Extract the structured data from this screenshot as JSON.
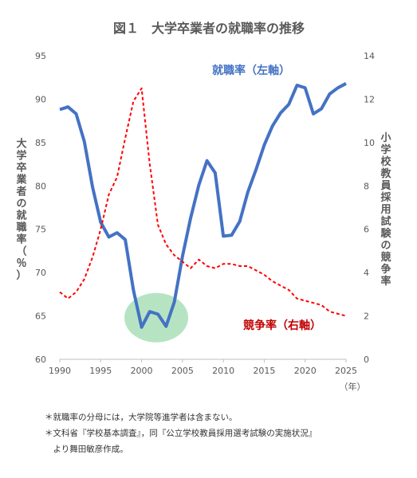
{
  "chart_data": {
    "type": "line",
    "title": "図１　大学卒業者の就職率の推移",
    "x_unit": "（年）",
    "x_ticks": [
      1990,
      1995,
      2000,
      2005,
      2010,
      2015,
      2020,
      2025
    ],
    "y_left": {
      "label": "大学卒業者の就職率（％）",
      "ticks": [
        60,
        65,
        70,
        75,
        80,
        85,
        90,
        95
      ],
      "range": [
        60,
        95
      ]
    },
    "y_right": {
      "label": "小学校教員採用試験の競争率",
      "ticks": [
        0,
        2,
        4,
        6,
        8,
        10,
        12,
        14
      ],
      "range": [
        0,
        14
      ]
    },
    "grid": false,
    "series": [
      {
        "name": "就職率（左軸）",
        "axis": "left",
        "color": "#4472C4",
        "style": "solid",
        "x": [
          1990,
          1991,
          1992,
          1993,
          1994,
          1995,
          1996,
          1997,
          1998,
          1999,
          2000,
          2001,
          2002,
          2003,
          2004,
          2005,
          2006,
          2007,
          2008,
          2009,
          2010,
          2011,
          2012,
          2013,
          2014,
          2015,
          2016,
          2017,
          2018,
          2019,
          2020,
          2021,
          2022,
          2023,
          2024,
          2025
        ],
        "values": [
          88.8,
          89.1,
          88.3,
          85.1,
          79.9,
          75.8,
          74.1,
          74.6,
          73.8,
          68.0,
          63.7,
          65.5,
          65.2,
          63.8,
          66.6,
          71.9,
          76.3,
          80.1,
          82.9,
          81.5,
          74.2,
          74.3,
          75.9,
          79.3,
          81.9,
          84.7,
          86.9,
          88.4,
          89.4,
          91.6,
          91.3,
          88.3,
          88.9,
          90.6,
          91.3,
          91.8
        ]
      },
      {
        "name": "競争率（右軸）",
        "axis": "right",
        "color": "#FF0000",
        "style": "dashed",
        "x": [
          1990,
          1991,
          1992,
          1993,
          1994,
          1995,
          1996,
          1997,
          1998,
          1999,
          2000,
          2001,
          2002,
          2003,
          2004,
          2005,
          2006,
          2007,
          2008,
          2009,
          2010,
          2011,
          2012,
          2013,
          2014,
          2015,
          2016,
          2017,
          2018,
          2019,
          2020,
          2021,
          2022,
          2023,
          2024,
          2025
        ],
        "values": [
          3.1,
          2.8,
          3.1,
          3.7,
          4.7,
          6.0,
          7.6,
          8.4,
          10.2,
          11.9,
          12.5,
          9.0,
          6.2,
          5.3,
          4.8,
          4.5,
          4.2,
          4.6,
          4.3,
          4.2,
          4.4,
          4.4,
          4.3,
          4.3,
          4.1,
          3.9,
          3.6,
          3.4,
          3.2,
          2.8,
          2.7,
          2.6,
          2.5,
          2.2,
          2.1,
          2.0
        ]
      }
    ],
    "annotations": [
      "就職率（左軸）",
      "競争率（右軸）"
    ],
    "highlight": {
      "label": "",
      "x_center": 2001.8,
      "y_center": 64.8,
      "color": "#A9DFB7"
    }
  },
  "notes": [
    "＊就職率の分母には，大学院等進学者は含まない。",
    "＊文科省『学校基本調査』，同『公立学校教員採用選考試験の実施状況』",
    "　より舞田敏彦作成。"
  ]
}
